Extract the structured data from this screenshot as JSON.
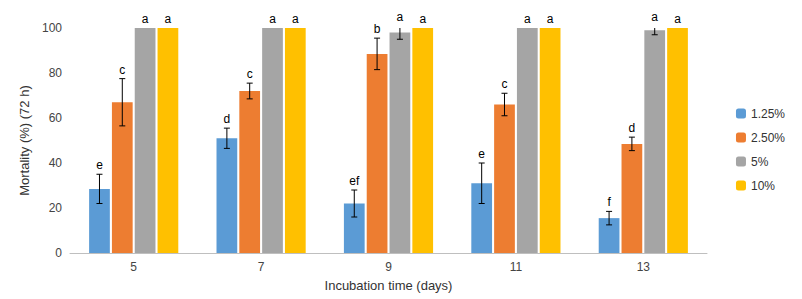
{
  "chart_data": {
    "type": "bar",
    "x_label": "Incubation time (days)",
    "y_label": "Mortality (%) (72 h)",
    "categories": [
      5,
      7,
      9,
      11,
      13
    ],
    "ylim": [
      0,
      100
    ],
    "yticks": [
      0,
      20,
      40,
      60,
      80,
      100
    ],
    "grid": false,
    "legend": "right",
    "series": [
      {
        "name": "1.25%",
        "color": "#5B9BD5",
        "values": [
          28.5,
          51,
          22,
          31,
          15.5
        ],
        "errors": [
          6.5,
          4.5,
          6,
          9,
          3
        ],
        "letters": [
          "e",
          "d",
          "ef",
          "e",
          "f"
        ]
      },
      {
        "name": "2.50%",
        "color": "#ED7D31",
        "values": [
          67,
          72,
          88.5,
          66,
          48.5
        ],
        "errors": [
          10.5,
          3.5,
          7,
          5,
          3
        ],
        "letters": [
          "c",
          "c",
          "b",
          "c",
          "d"
        ]
      },
      {
        "name": "5%",
        "color": "#A5A5A5",
        "values": [
          100,
          100,
          98,
          100,
          99
        ],
        "errors": [
          0,
          0,
          3,
          0,
          2
        ],
        "letters": [
          "a",
          "a",
          "a",
          "a",
          "a"
        ]
      },
      {
        "name": "10%",
        "color": "#FFC000",
        "values": [
          100,
          100,
          100,
          100,
          100
        ],
        "errors": [
          0,
          0,
          0,
          0,
          0
        ],
        "letters": [
          "a",
          "a",
          "a",
          "a",
          "a"
        ]
      }
    ]
  }
}
